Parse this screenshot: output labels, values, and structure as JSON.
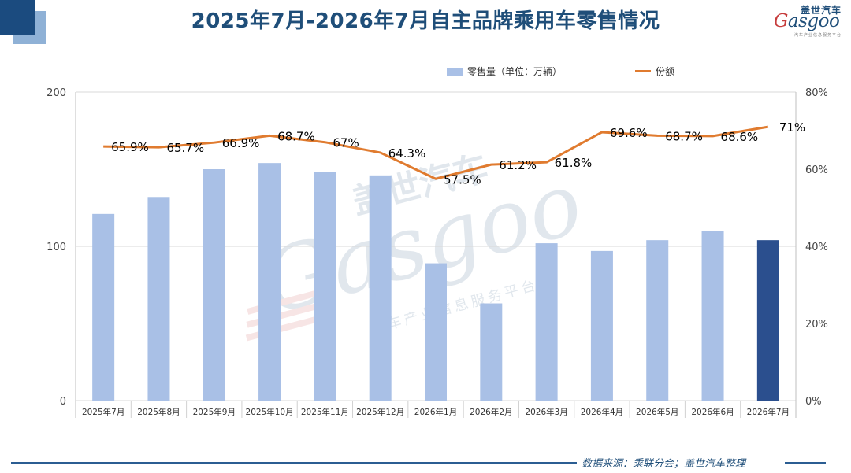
{
  "title": "2025年7月-2026年7月自主品牌乘用车零售情况",
  "logo": {
    "cn": "盖世汽车",
    "en": "Gasgoo",
    "sub": "汽车产业信息服务平台"
  },
  "watermark": {
    "cn": "盖世汽车",
    "en": "Gasgoo",
    "sub": "汽车产业信息服务平台"
  },
  "source": "数据来源：乘联分会；盖世汽车整理",
  "colors": {
    "bar": "#a9c0e6",
    "bar_highlight": "#2b4f8e",
    "line": "#e07b2f",
    "title": "#1f4e79"
  },
  "chart_data": {
    "type": "bar",
    "categories": [
      "2025年7月",
      "2025年8月",
      "2025年9月",
      "2025年10月",
      "2025年11月",
      "2025年12月",
      "2026年1月",
      "2026年2月",
      "2026年3月",
      "2026年4月",
      "2026年5月",
      "2026年6月",
      "2026年7月"
    ],
    "series": [
      {
        "name": "零售量（单位：万辆）",
        "type": "bar",
        "axis": "left",
        "values": [
          121,
          132,
          150,
          154,
          148,
          146,
          89,
          63,
          102,
          97,
          104,
          110,
          104
        ]
      },
      {
        "name": "份额",
        "type": "line",
        "axis": "right",
        "values": [
          65.9,
          65.7,
          66.9,
          68.7,
          67,
          64.3,
          57.5,
          61.2,
          61.8,
          69.6,
          68.7,
          68.6,
          71
        ],
        "labels": [
          "65.9%",
          "65.7%",
          "66.9%",
          "68.7%",
          "67%",
          "64.3%",
          "57.5%",
          "61.2%",
          "61.8%",
          "69.6%",
          "68.7%",
          "68.6%",
          "71%"
        ]
      }
    ],
    "highlight_index": 12,
    "ylim_left": [
      0,
      200
    ],
    "yticks_left": [
      "0",
      "100",
      "200"
    ],
    "ylim_right": [
      0,
      80
    ],
    "yticks_right": [
      "0%",
      "20%",
      "40%",
      "60%",
      "80%"
    ],
    "grid": true,
    "legend_position": "top-right"
  }
}
